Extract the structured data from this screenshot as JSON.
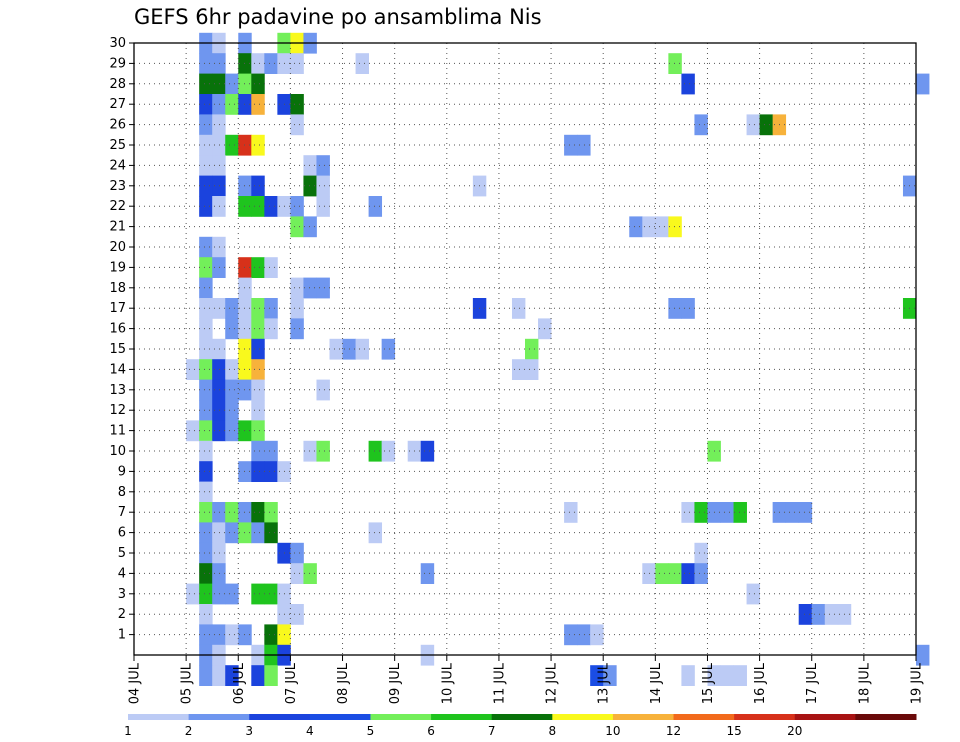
{
  "title": "GEFS 6hr padavine po ansamblima Nis",
  "chart_data": {
    "type": "heatmap",
    "title": "GEFS 6hr padavine po ansamblima Nis",
    "x_ticks": [
      "04 JUL",
      "05 JUL",
      "06 JUL",
      "07 JUL",
      "08 JUL",
      "09 JUL",
      "10 JUL",
      "11 JUL",
      "12 JUL",
      "13 JUL",
      "14 JUL",
      "15 JUL",
      "16 JUL",
      "17 JUL",
      "18 JUL",
      "19 JUL"
    ],
    "y_ticks": [
      "1",
      "2",
      "3",
      "4",
      "5",
      "6",
      "7",
      "8",
      "9",
      "10",
      "11",
      "12",
      "13",
      "14",
      "15",
      "16",
      "17",
      "18",
      "19",
      "20",
      "21",
      "22",
      "23",
      "24",
      "25",
      "26",
      "27",
      "28",
      "29",
      "30"
    ],
    "x_range": [
      "04 JUL",
      "19 JUL"
    ],
    "y_range": [
      0,
      30
    ],
    "grid": true,
    "colorbar": {
      "labels": [
        "1",
        "2",
        "3",
        "4",
        "5",
        "6",
        "7",
        "8",
        "10",
        "12",
        "15",
        "20"
      ],
      "colors": [
        "#bccbf5",
        "#6f96ef",
        "#1b43dd",
        "#1a4de4",
        "#73ef5a",
        "#1fc41e",
        "#08720a",
        "#f9f91d",
        "#f7b23b",
        "#f26a1c",
        "#d7311a",
        "#a81313",
        "#6a0a0a"
      ]
    },
    "cells": [
      {
        "m": 30,
        "day": 5.25,
        "lvl": 2
      },
      {
        "m": 30,
        "day": 5.5,
        "lvl": 1
      },
      {
        "m": 30,
        "day": 6.0,
        "lvl": 2
      },
      {
        "m": 30,
        "day": 6.75,
        "lvl": 5
      },
      {
        "m": 30,
        "day": 7.0,
        "lvl": 8
      },
      {
        "m": 30,
        "day": 7.25,
        "lvl": 2
      },
      {
        "m": 29,
        "day": 5.25,
        "lvl": 2
      },
      {
        "m": 29,
        "day": 5.5,
        "lvl": 2
      },
      {
        "m": 29,
        "day": 6.0,
        "lvl": 7
      },
      {
        "m": 29,
        "day": 6.25,
        "lvl": 1
      },
      {
        "m": 29,
        "day": 6.5,
        "lvl": 2
      },
      {
        "m": 29,
        "day": 6.75,
        "lvl": 1
      },
      {
        "m": 29,
        "day": 7.0,
        "lvl": 1
      },
      {
        "m": 29,
        "day": 8.25,
        "lvl": 1
      },
      {
        "m": 29,
        "day": 14.25,
        "lvl": 5
      },
      {
        "m": 28,
        "day": 5.25,
        "lvl": 7
      },
      {
        "m": 28,
        "day": 5.5,
        "lvl": 7
      },
      {
        "m": 28,
        "day": 5.75,
        "lvl": 2
      },
      {
        "m": 28,
        "day": 6.0,
        "lvl": 5
      },
      {
        "m": 28,
        "day": 6.25,
        "lvl": 7
      },
      {
        "m": 28,
        "day": 14.5,
        "lvl": 3
      },
      {
        "m": 28,
        "day": 19.0,
        "lvl": 2
      },
      {
        "m": 27,
        "day": 5.25,
        "lvl": 3
      },
      {
        "m": 27,
        "day": 5.5,
        "lvl": 2
      },
      {
        "m": 27,
        "day": 5.75,
        "lvl": 5
      },
      {
        "m": 27,
        "day": 6.0,
        "lvl": 3
      },
      {
        "m": 27,
        "day": 6.25,
        "lvl": 9
      },
      {
        "m": 27,
        "day": 6.75,
        "lvl": 3
      },
      {
        "m": 27,
        "day": 7.0,
        "lvl": 7
      },
      {
        "m": 26,
        "day": 5.25,
        "lvl": 2
      },
      {
        "m": 26,
        "day": 5.5,
        "lvl": 1
      },
      {
        "m": 26,
        "day": 7.0,
        "lvl": 1
      },
      {
        "m": 26,
        "day": 14.75,
        "lvl": 2
      },
      {
        "m": 26,
        "day": 15.75,
        "lvl": 1
      },
      {
        "m": 26,
        "day": 16.0,
        "lvl": 7
      },
      {
        "m": 26,
        "day": 16.25,
        "lvl": 9
      },
      {
        "m": 25,
        "day": 5.25,
        "lvl": 1
      },
      {
        "m": 25,
        "day": 5.5,
        "lvl": 1
      },
      {
        "m": 25,
        "day": 5.75,
        "lvl": 6
      },
      {
        "m": 25,
        "day": 6.0,
        "lvl": 11
      },
      {
        "m": 25,
        "day": 6.25,
        "lvl": 8
      },
      {
        "m": 25,
        "day": 12.25,
        "lvl": 2
      },
      {
        "m": 25,
        "day": 12.5,
        "lvl": 2
      },
      {
        "m": 24,
        "day": 5.25,
        "lvl": 1
      },
      {
        "m": 24,
        "day": 5.5,
        "lvl": 1
      },
      {
        "m": 24,
        "day": 7.25,
        "lvl": 1
      },
      {
        "m": 24,
        "day": 7.5,
        "lvl": 2
      },
      {
        "m": 23,
        "day": 5.25,
        "lvl": 3
      },
      {
        "m": 23,
        "day": 5.5,
        "lvl": 3
      },
      {
        "m": 23,
        "day": 6.0,
        "lvl": 2
      },
      {
        "m": 23,
        "day": 6.25,
        "lvl": 3
      },
      {
        "m": 23,
        "day": 7.25,
        "lvl": 7
      },
      {
        "m": 23,
        "day": 7.5,
        "lvl": 1
      },
      {
        "m": 23,
        "day": 10.5,
        "lvl": 1
      },
      {
        "m": 23,
        "day": 18.75,
        "lvl": 2
      },
      {
        "m": 22,
        "day": 5.25,
        "lvl": 3
      },
      {
        "m": 22,
        "day": 5.5,
        "lvl": 1
      },
      {
        "m": 22,
        "day": 6.0,
        "lvl": 6
      },
      {
        "m": 22,
        "day": 6.25,
        "lvl": 6
      },
      {
        "m": 22,
        "day": 6.5,
        "lvl": 3
      },
      {
        "m": 22,
        "day": 6.75,
        "lvl": 1
      },
      {
        "m": 22,
        "day": 7.0,
        "lvl": 2
      },
      {
        "m": 22,
        "day": 7.5,
        "lvl": 1
      },
      {
        "m": 22,
        "day": 8.5,
        "lvl": 2
      },
      {
        "m": 21,
        "day": 7.0,
        "lvl": 5
      },
      {
        "m": 21,
        "day": 7.25,
        "lvl": 2
      },
      {
        "m": 21,
        "day": 13.5,
        "lvl": 2
      },
      {
        "m": 21,
        "day": 13.75,
        "lvl": 1
      },
      {
        "m": 21,
        "day": 14.0,
        "lvl": 1
      },
      {
        "m": 21,
        "day": 14.25,
        "lvl": 8
      },
      {
        "m": 20,
        "day": 5.25,
        "lvl": 2
      },
      {
        "m": 20,
        "day": 5.5,
        "lvl": 1
      },
      {
        "m": 19,
        "day": 5.25,
        "lvl": 5
      },
      {
        "m": 19,
        "day": 5.5,
        "lvl": 2
      },
      {
        "m": 19,
        "day": 6.0,
        "lvl": 11
      },
      {
        "m": 19,
        "day": 6.25,
        "lvl": 6
      },
      {
        "m": 19,
        "day": 6.5,
        "lvl": 1
      },
      {
        "m": 18,
        "day": 5.25,
        "lvl": 2
      },
      {
        "m": 18,
        "day": 6.0,
        "lvl": 1
      },
      {
        "m": 18,
        "day": 7.0,
        "lvl": 1
      },
      {
        "m": 18,
        "day": 7.25,
        "lvl": 2
      },
      {
        "m": 18,
        "day": 7.5,
        "lvl": 2
      },
      {
        "m": 17,
        "day": 5.25,
        "lvl": 1
      },
      {
        "m": 17,
        "day": 5.5,
        "lvl": 1
      },
      {
        "m": 17,
        "day": 5.75,
        "lvl": 2
      },
      {
        "m": 17,
        "day": 6.0,
        "lvl": 1
      },
      {
        "m": 17,
        "day": 6.25,
        "lvl": 5
      },
      {
        "m": 17,
        "day": 6.5,
        "lvl": 2
      },
      {
        "m": 17,
        "day": 7.0,
        "lvl": 1
      },
      {
        "m": 17,
        "day": 10.5,
        "lvl": 3
      },
      {
        "m": 17,
        "day": 11.25,
        "lvl": 1
      },
      {
        "m": 17,
        "day": 14.25,
        "lvl": 2
      },
      {
        "m": 17,
        "day": 14.5,
        "lvl": 2
      },
      {
        "m": 17,
        "day": 18.75,
        "lvl": 6
      },
      {
        "m": 16,
        "day": 5.25,
        "lvl": 1
      },
      {
        "m": 16,
        "day": 5.75,
        "lvl": 2
      },
      {
        "m": 16,
        "day": 6.0,
        "lvl": 1
      },
      {
        "m": 16,
        "day": 6.25,
        "lvl": 5
      },
      {
        "m": 16,
        "day": 6.5,
        "lvl": 1
      },
      {
        "m": 16,
        "day": 7.0,
        "lvl": 2
      },
      {
        "m": 16,
        "day": 11.75,
        "lvl": 1
      },
      {
        "m": 15,
        "day": 5.25,
        "lvl": 1
      },
      {
        "m": 15,
        "day": 5.5,
        "lvl": 1
      },
      {
        "m": 15,
        "day": 6.0,
        "lvl": 8
      },
      {
        "m": 15,
        "day": 6.25,
        "lvl": 3
      },
      {
        "m": 15,
        "day": 7.75,
        "lvl": 1
      },
      {
        "m": 15,
        "day": 8.0,
        "lvl": 2
      },
      {
        "m": 15,
        "day": 8.25,
        "lvl": 1
      },
      {
        "m": 15,
        "day": 8.75,
        "lvl": 2
      },
      {
        "m": 15,
        "day": 11.5,
        "lvl": 5
      },
      {
        "m": 14,
        "day": 5.0,
        "lvl": 1
      },
      {
        "m": 14,
        "day": 5.25,
        "lvl": 5
      },
      {
        "m": 14,
        "day": 5.5,
        "lvl": 3
      },
      {
        "m": 14,
        "day": 5.75,
        "lvl": 1
      },
      {
        "m": 14,
        "day": 6.0,
        "lvl": 8
      },
      {
        "m": 14,
        "day": 6.25,
        "lvl": 9
      },
      {
        "m": 14,
        "day": 11.25,
        "lvl": 1
      },
      {
        "m": 14,
        "day": 11.5,
        "lvl": 1
      },
      {
        "m": 13,
        "day": 5.25,
        "lvl": 2
      },
      {
        "m": 13,
        "day": 5.5,
        "lvl": 3
      },
      {
        "m": 13,
        "day": 5.75,
        "lvl": 2
      },
      {
        "m": 13,
        "day": 6.0,
        "lvl": 2
      },
      {
        "m": 13,
        "day": 6.25,
        "lvl": 1
      },
      {
        "m": 13,
        "day": 7.5,
        "lvl": 1
      },
      {
        "m": 12,
        "day": 5.25,
        "lvl": 2
      },
      {
        "m": 12,
        "day": 5.5,
        "lvl": 3
      },
      {
        "m": 12,
        "day": 5.75,
        "lvl": 2
      },
      {
        "m": 12,
        "day": 6.25,
        "lvl": 1
      },
      {
        "m": 11,
        "day": 5.0,
        "lvl": 1
      },
      {
        "m": 11,
        "day": 5.25,
        "lvl": 5
      },
      {
        "m": 11,
        "day": 5.5,
        "lvl": 3
      },
      {
        "m": 11,
        "day": 5.75,
        "lvl": 2
      },
      {
        "m": 11,
        "day": 6.0,
        "lvl": 6
      },
      {
        "m": 11,
        "day": 6.25,
        "lvl": 5
      },
      {
        "m": 10,
        "day": 5.25,
        "lvl": 1
      },
      {
        "m": 10,
        "day": 6.25,
        "lvl": 2
      },
      {
        "m": 10,
        "day": 6.5,
        "lvl": 2
      },
      {
        "m": 10,
        "day": 7.25,
        "lvl": 1
      },
      {
        "m": 10,
        "day": 7.5,
        "lvl": 5
      },
      {
        "m": 10,
        "day": 8.5,
        "lvl": 6
      },
      {
        "m": 10,
        "day": 8.75,
        "lvl": 1
      },
      {
        "m": 10,
        "day": 9.25,
        "lvl": 1
      },
      {
        "m": 10,
        "day": 9.5,
        "lvl": 3
      },
      {
        "m": 10,
        "day": 15.0,
        "lvl": 5
      },
      {
        "m": 9,
        "day": 5.25,
        "lvl": 3
      },
      {
        "m": 9,
        "day": 6.0,
        "lvl": 2
      },
      {
        "m": 9,
        "day": 6.25,
        "lvl": 3
      },
      {
        "m": 9,
        "day": 6.5,
        "lvl": 3
      },
      {
        "m": 9,
        "day": 6.75,
        "lvl": 1
      },
      {
        "m": 8,
        "day": 5.25,
        "lvl": 1
      },
      {
        "m": 7,
        "day": 5.25,
        "lvl": 5
      },
      {
        "m": 7,
        "day": 5.5,
        "lvl": 2
      },
      {
        "m": 7,
        "day": 5.75,
        "lvl": 5
      },
      {
        "m": 7,
        "day": 6.0,
        "lvl": 2
      },
      {
        "m": 7,
        "day": 6.25,
        "lvl": 7
      },
      {
        "m": 7,
        "day": 6.5,
        "lvl": 5
      },
      {
        "m": 7,
        "day": 12.25,
        "lvl": 1
      },
      {
        "m": 7,
        "day": 14.5,
        "lvl": 1
      },
      {
        "m": 7,
        "day": 14.75,
        "lvl": 6
      },
      {
        "m": 7,
        "day": 15.0,
        "lvl": 2
      },
      {
        "m": 7,
        "day": 15.25,
        "lvl": 2
      },
      {
        "m": 7,
        "day": 15.5,
        "lvl": 6
      },
      {
        "m": 7,
        "day": 16.25,
        "lvl": 2
      },
      {
        "m": 7,
        "day": 16.5,
        "lvl": 2
      },
      {
        "m": 7,
        "day": 16.75,
        "lvl": 2
      },
      {
        "m": 6,
        "day": 5.25,
        "lvl": 2
      },
      {
        "m": 6,
        "day": 5.5,
        "lvl": 1
      },
      {
        "m": 6,
        "day": 5.75,
        "lvl": 2
      },
      {
        "m": 6,
        "day": 6.0,
        "lvl": 5
      },
      {
        "m": 6,
        "day": 6.25,
        "lvl": 2
      },
      {
        "m": 6,
        "day": 6.5,
        "lvl": 7
      },
      {
        "m": 6,
        "day": 8.5,
        "lvl": 1
      },
      {
        "m": 5,
        "day": 5.25,
        "lvl": 2
      },
      {
        "m": 5,
        "day": 5.5,
        "lvl": 1
      },
      {
        "m": 5,
        "day": 6.75,
        "lvl": 3
      },
      {
        "m": 5,
        "day": 7.0,
        "lvl": 2
      },
      {
        "m": 5,
        "day": 14.75,
        "lvl": 1
      },
      {
        "m": 4,
        "day": 5.25,
        "lvl": 7
      },
      {
        "m": 4,
        "day": 5.5,
        "lvl": 2
      },
      {
        "m": 4,
        "day": 7.0,
        "lvl": 1
      },
      {
        "m": 4,
        "day": 7.25,
        "lvl": 5
      },
      {
        "m": 4,
        "day": 9.5,
        "lvl": 2
      },
      {
        "m": 4,
        "day": 13.75,
        "lvl": 1
      },
      {
        "m": 4,
        "day": 14.0,
        "lvl": 5
      },
      {
        "m": 4,
        "day": 14.25,
        "lvl": 5
      },
      {
        "m": 4,
        "day": 14.5,
        "lvl": 3
      },
      {
        "m": 4,
        "day": 14.75,
        "lvl": 2
      },
      {
        "m": 3,
        "day": 5.0,
        "lvl": 1
      },
      {
        "m": 3,
        "day": 5.25,
        "lvl": 6
      },
      {
        "m": 3,
        "day": 5.5,
        "lvl": 2
      },
      {
        "m": 3,
        "day": 5.75,
        "lvl": 2
      },
      {
        "m": 3,
        "day": 6.25,
        "lvl": 6
      },
      {
        "m": 3,
        "day": 6.5,
        "lvl": 6
      },
      {
        "m": 3,
        "day": 6.75,
        "lvl": 1
      },
      {
        "m": 3,
        "day": 15.75,
        "lvl": 1
      },
      {
        "m": 2,
        "day": 5.25,
        "lvl": 1
      },
      {
        "m": 2,
        "day": 6.75,
        "lvl": 1
      },
      {
        "m": 2,
        "day": 7.0,
        "lvl": 1
      },
      {
        "m": 2,
        "day": 16.75,
        "lvl": 3
      },
      {
        "m": 2,
        "day": 17.0,
        "lvl": 2
      },
      {
        "m": 2,
        "day": 17.25,
        "lvl": 1
      },
      {
        "m": 2,
        "day": 17.5,
        "lvl": 1
      },
      {
        "m": 1,
        "day": 5.25,
        "lvl": 2
      },
      {
        "m": 1,
        "day": 5.5,
        "lvl": 2
      },
      {
        "m": 1,
        "day": 5.75,
        "lvl": 1
      },
      {
        "m": 1,
        "day": 6.0,
        "lvl": 2
      },
      {
        "m": 1,
        "day": 6.5,
        "lvl": 7
      },
      {
        "m": 1,
        "day": 6.75,
        "lvl": 8
      },
      {
        "m": 1,
        "day": 12.25,
        "lvl": 2
      },
      {
        "m": 1,
        "day": 12.5,
        "lvl": 2
      },
      {
        "m": 1,
        "day": 12.75,
        "lvl": 1
      },
      {
        "m": 0,
        "day": 5.25,
        "lvl": 2
      },
      {
        "m": 0,
        "day": 5.5,
        "lvl": 1
      },
      {
        "m": 0,
        "day": 6.25,
        "lvl": 1
      },
      {
        "m": 0,
        "day": 6.5,
        "lvl": 6
      },
      {
        "m": 0,
        "day": 6.75,
        "lvl": 3
      },
      {
        "m": 0,
        "day": 9.5,
        "lvl": 1
      },
      {
        "m": 0,
        "day": 19.0,
        "lvl": 2
      },
      {
        "m": -1,
        "day": 5.25,
        "lvl": 2
      },
      {
        "m": -1,
        "day": 5.5,
        "lvl": 1
      },
      {
        "m": -1,
        "day": 5.75,
        "lvl": 3
      },
      {
        "m": -1,
        "day": 6.25,
        "lvl": 3
      },
      {
        "m": -1,
        "day": 6.5,
        "lvl": 5
      },
      {
        "m": -1,
        "day": 12.75,
        "lvl": 4
      },
      {
        "m": -1,
        "day": 13.0,
        "lvl": 2
      },
      {
        "m": -1,
        "day": 14.5,
        "lvl": 1
      },
      {
        "m": -1,
        "day": 15.0,
        "lvl": 1
      },
      {
        "m": -1,
        "day": 15.25,
        "lvl": 1
      },
      {
        "m": -1,
        "day": 15.5,
        "lvl": 1
      }
    ]
  }
}
